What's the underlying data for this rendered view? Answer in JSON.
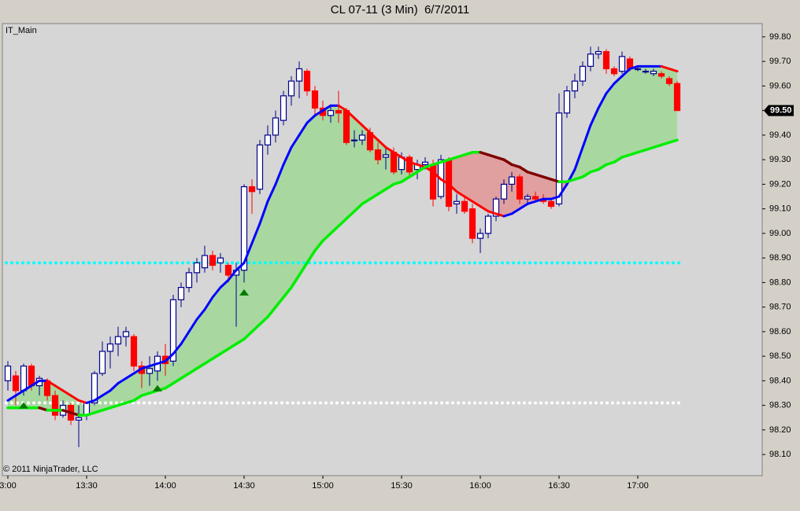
{
  "chart_data": {
    "type": "candlestick",
    "title": "CL 07-11 (3 Min)  6/7/2011",
    "panel_label": "IT_Main",
    "copyright": "© 2011 NinjaTrader, LLC",
    "up_color": "#00008b",
    "down_color": "#ff0000",
    "candles": [
      [
        98.4,
        98.48,
        98.36,
        98.46
      ],
      [
        98.42,
        98.44,
        98.3,
        98.36
      ],
      [
        98.36,
        98.47,
        98.34,
        98.46
      ],
      [
        98.46,
        98.47,
        98.36,
        98.38
      ],
      [
        98.38,
        98.42,
        98.34,
        98.41
      ],
      [
        98.4,
        98.41,
        98.32,
        98.34
      ],
      [
        98.34,
        98.36,
        98.24,
        98.26
      ],
      [
        98.26,
        98.32,
        98.25,
        98.3
      ],
      [
        98.3,
        98.31,
        98.22,
        98.24
      ],
      [
        98.24,
        98.3,
        98.13,
        98.25
      ],
      [
        98.26,
        98.31,
        98.24,
        98.31
      ],
      [
        98.31,
        98.44,
        98.3,
        98.43
      ],
      [
        98.43,
        98.56,
        98.42,
        98.52
      ],
      [
        98.52,
        98.58,
        98.45,
        98.55
      ],
      [
        98.55,
        98.62,
        98.5,
        98.58
      ],
      [
        98.58,
        98.62,
        98.54,
        98.6
      ],
      [
        98.58,
        98.59,
        98.44,
        98.46
      ],
      [
        98.46,
        98.48,
        98.37,
        98.43
      ],
      [
        98.43,
        98.5,
        98.38,
        98.45
      ],
      [
        98.44,
        98.52,
        98.4,
        98.5
      ],
      [
        98.5,
        98.55,
        98.42,
        98.47
      ],
      [
        98.48,
        98.75,
        98.46,
        98.73
      ],
      [
        98.73,
        98.8,
        98.7,
        98.78
      ],
      [
        98.78,
        98.86,
        98.76,
        98.84
      ],
      [
        98.84,
        98.9,
        98.8,
        98.88
      ],
      [
        98.86,
        98.95,
        98.84,
        98.91
      ],
      [
        98.91,
        98.93,
        98.85,
        98.87
      ],
      [
        98.88,
        98.92,
        98.84,
        98.9
      ],
      [
        98.87,
        98.88,
        98.8,
        98.83
      ],
      [
        98.83,
        98.88,
        98.62,
        98.85
      ],
      [
        98.85,
        99.2,
        98.8,
        99.19
      ],
      [
        99.19,
        99.22,
        99.08,
        99.17
      ],
      [
        99.18,
        99.38,
        99.16,
        99.36
      ],
      [
        99.36,
        99.44,
        99.32,
        99.4
      ],
      [
        99.4,
        99.5,
        99.37,
        99.47
      ],
      [
        99.46,
        99.58,
        99.44,
        99.56
      ],
      [
        99.56,
        99.64,
        99.52,
        99.62
      ],
      [
        99.62,
        99.7,
        99.55,
        99.67
      ],
      [
        99.66,
        99.67,
        99.56,
        99.58
      ],
      [
        99.58,
        99.6,
        99.48,
        99.51
      ],
      [
        99.51,
        99.54,
        99.46,
        99.48
      ],
      [
        99.48,
        99.52,
        99.45,
        99.5
      ],
      [
        99.5,
        99.58,
        99.45,
        99.49
      ],
      [
        99.5,
        99.51,
        99.36,
        99.37
      ],
      [
        99.38,
        99.42,
        99.35,
        99.38
      ],
      [
        99.38,
        99.42,
        99.36,
        99.4
      ],
      [
        99.41,
        99.43,
        99.33,
        99.34
      ],
      [
        99.34,
        99.37,
        99.28,
        99.3
      ],
      [
        99.31,
        99.35,
        99.26,
        99.32
      ],
      [
        99.33,
        99.35,
        99.24,
        99.25
      ],
      [
        99.26,
        99.33,
        99.24,
        99.31
      ],
      [
        99.31,
        99.32,
        99.23,
        99.25
      ],
      [
        99.26,
        99.3,
        99.22,
        99.28
      ],
      [
        99.28,
        99.31,
        99.26,
        99.29
      ],
      [
        99.28,
        99.3,
        99.11,
        99.14
      ],
      [
        99.15,
        99.32,
        99.14,
        99.3
      ],
      [
        99.3,
        99.31,
        99.09,
        99.11
      ],
      [
        99.12,
        99.16,
        99.08,
        99.13
      ],
      [
        99.13,
        99.15,
        99.08,
        99.09
      ],
      [
        99.1,
        99.12,
        98.96,
        98.98
      ],
      [
        98.98,
        99.02,
        98.92,
        99.0
      ],
      [
        99.0,
        99.08,
        98.98,
        99.07
      ],
      [
        99.07,
        99.15,
        99.05,
        99.14
      ],
      [
        99.14,
        99.22,
        99.12,
        99.2
      ],
      [
        99.2,
        99.25,
        99.17,
        99.23
      ],
      [
        99.23,
        99.24,
        99.12,
        99.14
      ],
      [
        99.14,
        99.16,
        99.12,
        99.15
      ],
      [
        99.15,
        99.17,
        99.13,
        99.14
      ],
      [
        99.14,
        99.16,
        99.12,
        99.13
      ],
      [
        99.13,
        99.14,
        99.1,
        99.11
      ],
      [
        99.12,
        99.57,
        99.11,
        99.49
      ],
      [
        99.49,
        99.6,
        99.47,
        99.58
      ],
      [
        99.58,
        99.65,
        99.55,
        99.62
      ],
      [
        99.62,
        99.7,
        99.6,
        99.68
      ],
      [
        99.68,
        99.76,
        99.66,
        99.73
      ],
      [
        99.73,
        99.76,
        99.71,
        99.74
      ],
      [
        99.74,
        99.75,
        99.65,
        99.67
      ],
      [
        99.67,
        99.68,
        99.64,
        99.65
      ],
      [
        99.66,
        99.74,
        99.65,
        99.72
      ],
      [
        99.71,
        99.72,
        99.66,
        99.67
      ],
      [
        99.67,
        99.68,
        99.66,
        99.67
      ],
      [
        99.66,
        99.67,
        99.65,
        99.66
      ],
      [
        99.65,
        99.67,
        99.64,
        99.66
      ],
      [
        99.65,
        99.66,
        99.63,
        99.64
      ],
      [
        99.63,
        99.64,
        99.6,
        99.61
      ],
      [
        99.61,
        99.62,
        99.5,
        99.5
      ]
    ],
    "fast_ma": {
      "rising_color": "#0000ff",
      "falling_color": "#ff0000",
      "values": [
        98.32,
        98.34,
        98.36,
        98.38,
        98.4,
        98.4,
        98.38,
        98.36,
        98.34,
        98.32,
        98.31,
        98.32,
        98.34,
        98.36,
        98.39,
        98.41,
        98.43,
        98.45,
        98.46,
        98.47,
        98.48,
        98.51,
        98.55,
        98.6,
        98.65,
        98.69,
        98.74,
        98.78,
        98.81,
        98.85,
        98.88,
        98.96,
        99.04,
        99.13,
        99.2,
        99.28,
        99.35,
        99.4,
        99.45,
        99.48,
        99.5,
        99.52,
        99.52,
        99.5,
        99.47,
        99.44,
        99.41,
        99.38,
        99.35,
        99.33,
        99.31,
        99.29,
        99.28,
        99.27,
        99.25,
        99.22,
        99.2,
        99.17,
        99.15,
        99.13,
        99.11,
        99.09,
        99.08,
        99.07,
        99.08,
        99.1,
        99.12,
        99.13,
        99.14,
        99.14,
        99.15,
        99.2,
        99.26,
        99.35,
        99.44,
        99.51,
        99.57,
        99.61,
        99.64,
        99.67,
        99.68,
        99.68,
        99.68,
        99.68,
        99.67,
        99.66
      ]
    },
    "slow_ma": {
      "rising_color": "#00ee00",
      "falling_color": "#800000",
      "values": [
        98.29,
        98.29,
        98.29,
        98.29,
        98.29,
        98.28,
        98.28,
        98.28,
        98.27,
        98.26,
        98.26,
        98.27,
        98.28,
        98.29,
        98.3,
        98.31,
        98.32,
        98.34,
        98.35,
        98.36,
        98.37,
        98.39,
        98.41,
        98.43,
        98.45,
        98.47,
        98.49,
        98.51,
        98.53,
        98.55,
        98.57,
        98.6,
        98.63,
        98.66,
        98.7,
        98.74,
        98.78,
        98.83,
        98.88,
        98.93,
        98.97,
        99.0,
        99.03,
        99.06,
        99.09,
        99.12,
        99.14,
        99.16,
        99.18,
        99.2,
        99.21,
        99.23,
        99.25,
        99.27,
        99.28,
        99.29,
        99.3,
        99.31,
        99.32,
        99.33,
        99.33,
        99.32,
        99.31,
        99.3,
        99.28,
        99.27,
        99.25,
        99.24,
        99.23,
        99.22,
        99.21,
        99.21,
        99.22,
        99.23,
        99.25,
        99.26,
        99.28,
        99.29,
        99.31,
        99.32,
        99.33,
        99.34,
        99.35,
        99.36,
        99.37,
        99.38
      ]
    },
    "fill_above_color": "#a8d8a0",
    "fill_below_color": "#e0a0a0",
    "levels": [
      {
        "value": 98.88,
        "color": "#00ffff"
      },
      {
        "value": 98.31,
        "color": "#ffffff"
      }
    ],
    "signals": {
      "x": [
        2,
        19,
        30
      ],
      "values": [
        98.3,
        98.37,
        98.76
      ],
      "color": "#007a00"
    },
    "last_price": {
      "value": 99.5,
      "label": "99.50"
    },
    "xlim": [
      -0.7,
      95.8
    ],
    "ylim": [
      98.014,
      99.854
    ],
    "xticks": [
      {
        "value": 0,
        "label": "3:00"
      },
      {
        "value": 10,
        "label": "13:30"
      },
      {
        "value": 20,
        "label": "14:00"
      },
      {
        "value": 30,
        "label": "14:30"
      },
      {
        "value": 40,
        "label": "15:00"
      },
      {
        "value": 50,
        "label": "15:30"
      },
      {
        "value": 60,
        "label": "16:00"
      },
      {
        "value": 70,
        "label": "16:30"
      },
      {
        "value": 80,
        "label": "17:00"
      }
    ],
    "yticks": [
      {
        "value": 98.1,
        "label": "98.10"
      },
      {
        "value": 98.2,
        "label": "98.20"
      },
      {
        "value": 98.3,
        "label": "98.30"
      },
      {
        "value": 98.4,
        "label": "98.40"
      },
      {
        "value": 98.5,
        "label": "98.50"
      },
      {
        "value": 98.6,
        "label": "98.60"
      },
      {
        "value": 98.7,
        "label": "98.70"
      },
      {
        "value": 98.8,
        "label": "98.80"
      },
      {
        "value": 98.9,
        "label": "98.90"
      },
      {
        "value": 99.0,
        "label": "99.00"
      },
      {
        "value": 99.1,
        "label": "99.10"
      },
      {
        "value": 99.2,
        "label": "99.20"
      },
      {
        "value": 99.3,
        "label": "99.30"
      },
      {
        "value": 99.4,
        "label": "99.40"
      },
      {
        "value": 99.5,
        "label": "99.50"
      },
      {
        "value": 99.6,
        "label": "99.60"
      },
      {
        "value": 99.7,
        "label": "99.70"
      },
      {
        "value": 99.8,
        "label": "99.80"
      }
    ]
  }
}
